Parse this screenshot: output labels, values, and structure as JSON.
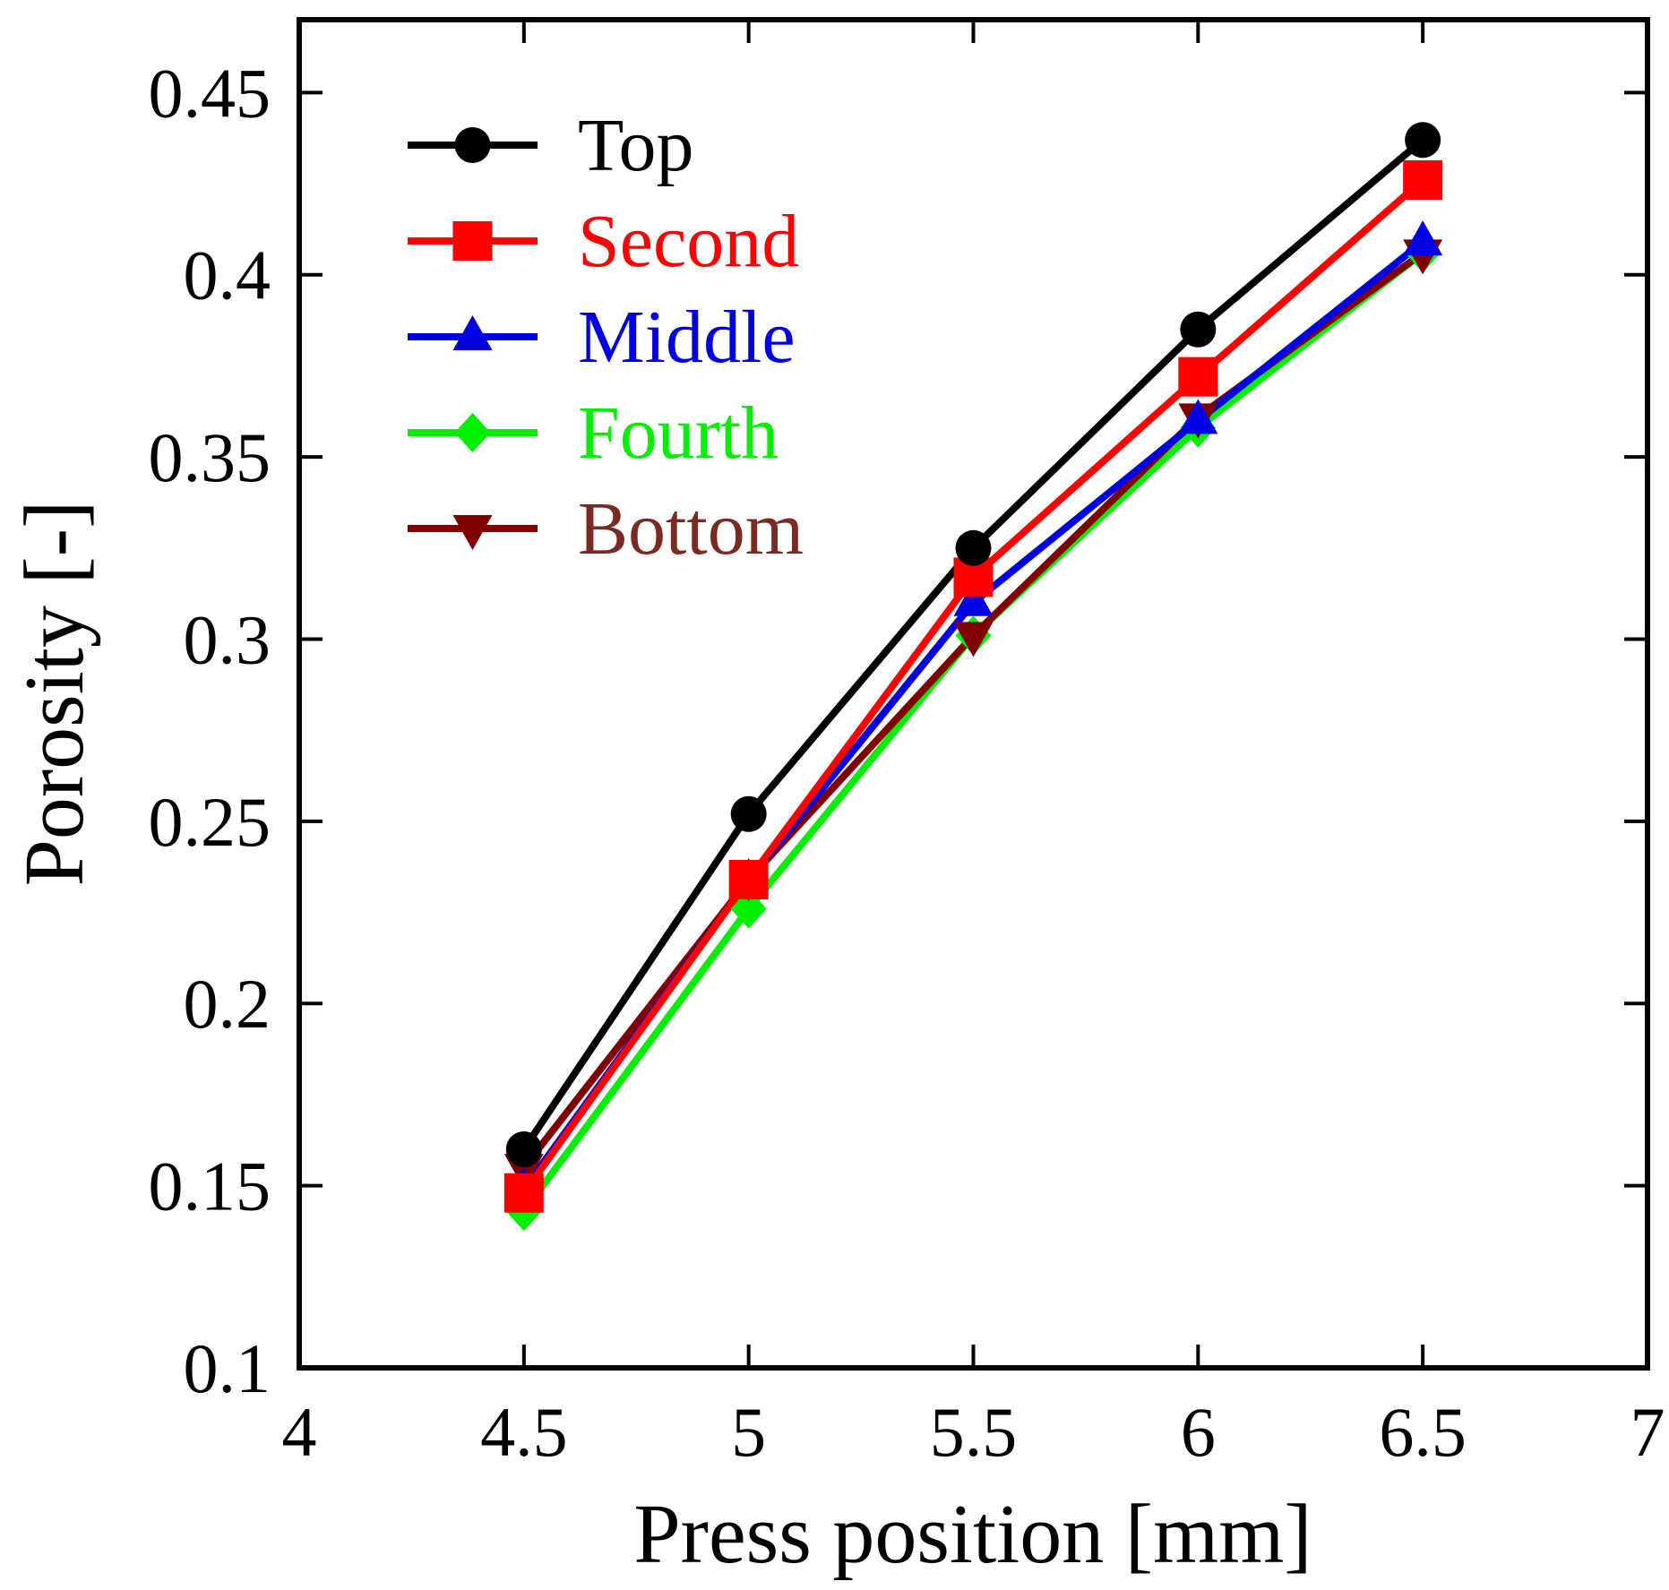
{
  "chart_data": {
    "type": "line",
    "xlabel": "Press position [mm]",
    "ylabel": "Porosity [-]",
    "xlim": [
      4,
      7
    ],
    "ylim": [
      0.1,
      0.47
    ],
    "xticks": [
      4,
      4.5,
      5,
      5.5,
      6,
      6.5,
      7
    ],
    "xtick_labels": [
      "4",
      "4.5",
      "5",
      "5.5",
      "6",
      "6.5",
      "7"
    ],
    "yticks": [
      0.1,
      0.15,
      0.2,
      0.25,
      0.3,
      0.35,
      0.4,
      0.45
    ],
    "ytick_labels": [
      "0.1",
      "0.15",
      "0.2",
      "0.25",
      "0.3",
      "0.35",
      "0.4",
      "0.45"
    ],
    "legend_position": "top-left",
    "grid": false,
    "x": [
      4.5,
      5,
      5.5,
      6,
      6.5
    ],
    "series": [
      {
        "name": "Top",
        "color": "#000000",
        "marker": "circle",
        "values": [
          0.16,
          0.252,
          0.325,
          0.385,
          0.437
        ]
      },
      {
        "name": "Second",
        "color": "#ff0000",
        "marker": "square",
        "values": [
          0.148,
          0.234,
          0.317,
          0.372,
          0.426
        ]
      },
      {
        "name": "Middle",
        "color": "#0000e0",
        "marker": "triangle",
        "values": [
          0.149,
          0.234,
          0.31,
          0.36,
          0.409
        ]
      },
      {
        "name": "Fourth",
        "color": "#00ee00",
        "marker": "diamond",
        "values": [
          0.143,
          0.226,
          0.301,
          0.358,
          0.406
        ]
      },
      {
        "name": "Bottom",
        "color": "#800000",
        "marker": "triangle-down",
        "values": [
          0.155,
          0.234,
          0.301,
          0.361,
          0.406
        ]
      }
    ],
    "legend_text_colors": [
      "#000000",
      "#ff0000",
      "#0000e0",
      "#00ee00",
      "#7a2a22"
    ]
  }
}
